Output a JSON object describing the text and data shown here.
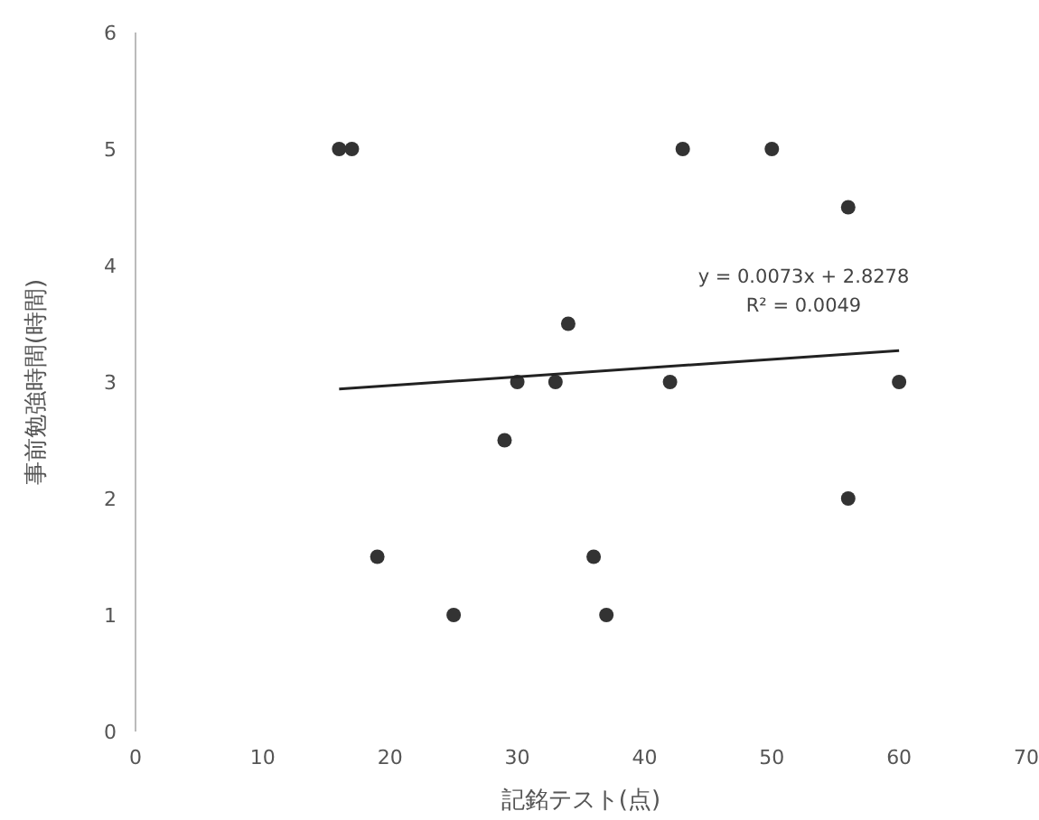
{
  "chart_data": {
    "type": "scatter",
    "xlabel": "記銘テスト(点)",
    "ylabel": "事前勉強時間(時間)",
    "xlim": [
      0,
      70
    ],
    "ylim": [
      0,
      6
    ],
    "xticks": [
      0,
      10,
      20,
      30,
      40,
      50,
      60,
      70
    ],
    "yticks": [
      0,
      1,
      2,
      3,
      4,
      5,
      6
    ],
    "grid": false,
    "annotations": [
      "y = 0.0073x + 2.8278",
      "R² = 0.0049"
    ],
    "series": [
      {
        "marker": "circle",
        "color": "#333333",
        "x": [
          16,
          17,
          43,
          50,
          56,
          34,
          30,
          33,
          42,
          60,
          29,
          56,
          19,
          36,
          25,
          37
        ],
        "values": [
          5,
          5,
          5,
          5,
          4.5,
          3.5,
          3,
          3,
          3,
          3,
          2.5,
          2,
          1.5,
          1.5,
          1,
          1
        ]
      },
      {
        "type": "line",
        "marker": "none",
        "color": "#222222",
        "x": [
          16,
          60
        ],
        "values": [
          2.94,
          3.27
        ]
      }
    ]
  }
}
